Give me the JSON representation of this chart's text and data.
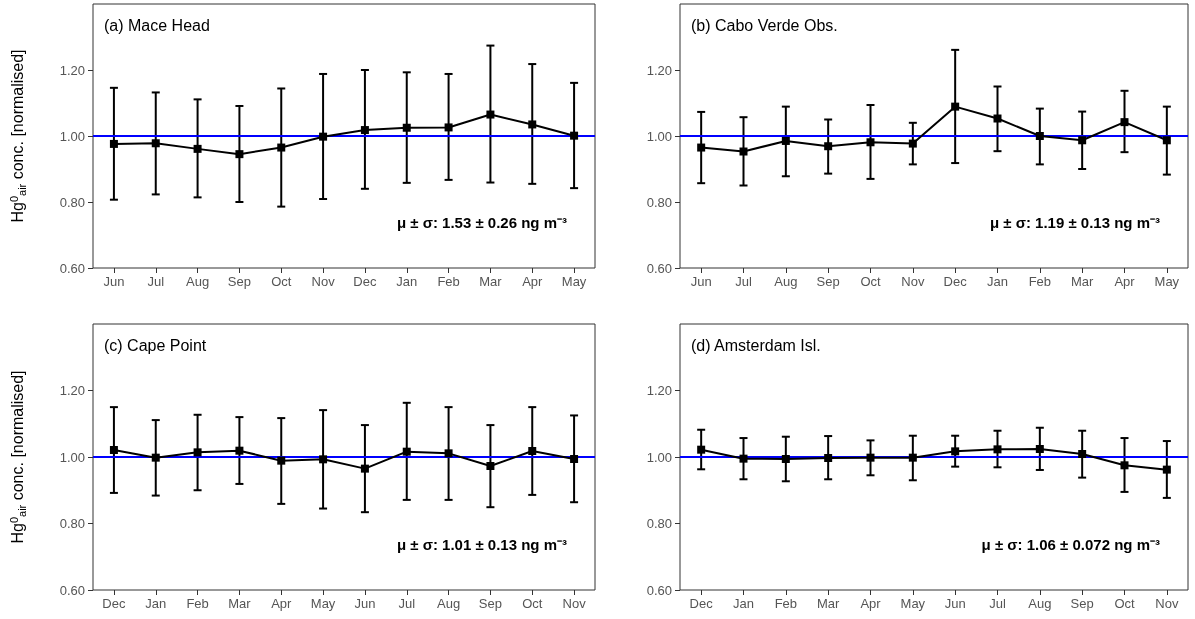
{
  "chart_data": [
    {
      "type": "line",
      "title": "(a) Mace Head",
      "ylabel": "Hg$^{0}$$_{air}$ conc. [normalised]",
      "categories": [
        "Jun",
        "Jul",
        "Aug",
        "Sep",
        "Oct",
        "Nov",
        "Dec",
        "Jan",
        "Feb",
        "Mar",
        "Apr",
        "May"
      ],
      "series": [
        {
          "color": "#000000",
          "values": [
            0.976,
            0.978,
            0.961,
            0.945,
            0.965,
            0.998,
            1.018,
            1.025,
            1.026,
            1.065,
            1.035,
            1.001
          ],
          "errors": [
            [
              0.807,
              1.146
            ],
            [
              0.823,
              1.132
            ],
            [
              0.814,
              1.111
            ],
            [
              0.8,
              1.091
            ],
            [
              0.786,
              1.144
            ],
            [
              0.809,
              1.188
            ],
            [
              0.84,
              1.2
            ],
            [
              0.858,
              1.193
            ],
            [
              0.867,
              1.188
            ],
            [
              0.859,
              1.274
            ],
            [
              0.855,
              1.218
            ],
            [
              0.842,
              1.161
            ]
          ]
        }
      ],
      "ylim": [
        0.6,
        1.4
      ],
      "yticks": [
        {
          "value": 0.6,
          "label": "0.60"
        },
        {
          "value": 0.8,
          "label": "0.80"
        },
        {
          "value": 1.0,
          "label": "1.00"
        },
        {
          "value": 1.2,
          "label": "1.20"
        }
      ],
      "ref_lines": [
        {
          "axis": "y",
          "value": 1.0,
          "color": "#0000ff"
        }
      ],
      "annotations": [
        "μ ± σ: 1.53 ± 0.26 ng m⁻³"
      ],
      "marker": "square",
      "line_style": "solid",
      "grid": false
    },
    {
      "type": "line",
      "title": "(b) Cabo Verde Obs.",
      "categories": [
        "Jun",
        "Jul",
        "Aug",
        "Sep",
        "Oct",
        "Nov",
        "Dec",
        "Jan",
        "Feb",
        "Mar",
        "Apr",
        "May"
      ],
      "series": [
        {
          "color": "#000000",
          "values": [
            0.965,
            0.953,
            0.985,
            0.969,
            0.981,
            0.977,
            1.089,
            1.053,
            1.0,
            0.987,
            1.042,
            0.987
          ],
          "errors": [
            [
              0.857,
              1.073
            ],
            [
              0.85,
              1.057
            ],
            [
              0.878,
              1.089
            ],
            [
              0.886,
              1.05
            ],
            [
              0.87,
              1.094
            ],
            [
              0.914,
              1.04
            ],
            [
              0.918,
              1.261
            ],
            [
              0.954,
              1.15
            ],
            [
              0.914,
              1.083
            ],
            [
              0.9,
              1.074
            ],
            [
              0.951,
              1.137
            ],
            [
              0.883,
              1.089
            ]
          ]
        }
      ],
      "ylim": [
        0.6,
        1.4
      ],
      "yticks": [
        {
          "value": 0.6,
          "label": "0.60"
        },
        {
          "value": 0.8,
          "label": "0.80"
        },
        {
          "value": 1.0,
          "label": "1.00"
        },
        {
          "value": 1.2,
          "label": "1.20"
        }
      ],
      "ref_lines": [
        {
          "axis": "y",
          "value": 1.0,
          "color": "#0000ff"
        }
      ],
      "annotations": [
        "μ ± σ: 1.19 ± 0.13 ng m⁻³"
      ],
      "marker": "square",
      "line_style": "solid",
      "grid": false
    },
    {
      "type": "line",
      "title": "(c) Cape Point",
      "ylabel": "Hg$^{0}$$_{air}$ conc. [normalised]",
      "categories": [
        "Dec",
        "Jan",
        "Feb",
        "Mar",
        "Apr",
        "May",
        "Jun",
        "Jul",
        "Aug",
        "Sep",
        "Oct",
        "Nov"
      ],
      "series": [
        {
          "color": "#000000",
          "values": [
            1.021,
            0.998,
            1.014,
            1.019,
            0.989,
            0.993,
            0.965,
            1.016,
            1.011,
            0.973,
            1.018,
            0.994
          ],
          "errors": [
            [
              0.892,
              1.15
            ],
            [
              0.884,
              1.111
            ],
            [
              0.9,
              1.127
            ],
            [
              0.919,
              1.12
            ],
            [
              0.859,
              1.117
            ],
            [
              0.845,
              1.141
            ],
            [
              0.834,
              1.096
            ],
            [
              0.871,
              1.163
            ],
            [
              0.871,
              1.15
            ],
            [
              0.849,
              1.096
            ],
            [
              0.886,
              1.15
            ],
            [
              0.864,
              1.125
            ]
          ]
        }
      ],
      "ylim": [
        0.6,
        1.4
      ],
      "yticks": [
        {
          "value": 0.6,
          "label": "0.60"
        },
        {
          "value": 0.8,
          "label": "0.80"
        },
        {
          "value": 1.0,
          "label": "1.00"
        },
        {
          "value": 1.2,
          "label": "1.20"
        }
      ],
      "ref_lines": [
        {
          "axis": "y",
          "value": 1.0,
          "color": "#0000ff"
        }
      ],
      "annotations": [
        "μ ± σ: 1.01 ± 0.13 ng m⁻³"
      ],
      "marker": "square",
      "line_style": "solid",
      "grid": false
    },
    {
      "type": "line",
      "title": "(d) Amsterdam Isl.",
      "categories": [
        "Dec",
        "Jan",
        "Feb",
        "Mar",
        "Apr",
        "May",
        "Jun",
        "Jul",
        "Aug",
        "Sep",
        "Oct",
        "Nov"
      ],
      "series": [
        {
          "color": "#000000",
          "values": [
            1.022,
            0.995,
            0.994,
            0.997,
            0.998,
            0.998,
            1.017,
            1.023,
            1.024,
            1.009,
            0.975,
            0.962
          ],
          "errors": [
            [
              0.963,
              1.082
            ],
            [
              0.933,
              1.057
            ],
            [
              0.927,
              1.061
            ],
            [
              0.933,
              1.063
            ],
            [
              0.945,
              1.05
            ],
            [
              0.93,
              1.064
            ],
            [
              0.971,
              1.064
            ],
            [
              0.969,
              1.079
            ],
            [
              0.961,
              1.088
            ],
            [
              0.938,
              1.079
            ],
            [
              0.895,
              1.057
            ],
            [
              0.877,
              1.048
            ]
          ]
        }
      ],
      "ylim": [
        0.6,
        1.4
      ],
      "yticks": [
        {
          "value": 0.6,
          "label": "0.60"
        },
        {
          "value": 0.8,
          "label": "0.80"
        },
        {
          "value": 1.0,
          "label": "1.00"
        },
        {
          "value": 1.2,
          "label": "1.20"
        }
      ],
      "ref_lines": [
        {
          "axis": "y",
          "value": 1.0,
          "color": "#0000ff"
        }
      ],
      "annotations": [
        "μ ± σ: 1.06 ± 0.072 ng m⁻³"
      ],
      "marker": "square",
      "line_style": "solid",
      "grid": false
    }
  ]
}
